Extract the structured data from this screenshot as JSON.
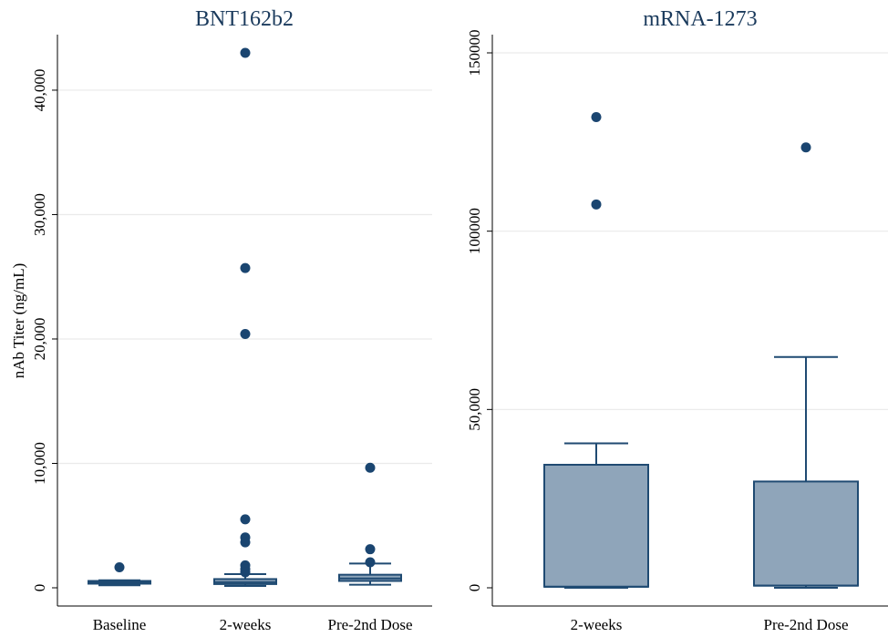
{
  "chart_data": [
    {
      "type": "box",
      "title": "BNT162b2",
      "ylabel": "nAb Titer (ng/mL)",
      "ylim": [
        0,
        44000
      ],
      "yticks": [
        0,
        10000,
        20000,
        30000,
        40000
      ],
      "ytick_labels": [
        "0",
        "10,000",
        "20,000",
        "30,000",
        "40,000"
      ],
      "grid": true,
      "categories": [
        "Baseline",
        "2-weeks",
        "Pre-2nd Dose"
      ],
      "boxes": [
        {
          "whisker_low": 200,
          "q1": 330,
          "median": 430,
          "q3": 550,
          "whisker_high": 600,
          "outliers": [
            1650
          ]
        },
        {
          "whisker_low": 150,
          "q1": 300,
          "median": 450,
          "q3": 700,
          "whisker_high": 1100,
          "outliers": [
            43000,
            25700,
            20400,
            5500,
            4050,
            3650,
            1800,
            1500,
            1250
          ]
        },
        {
          "whisker_low": 250,
          "q1": 550,
          "median": 750,
          "q3": 1050,
          "whisker_high": 1950,
          "outliers": [
            9650,
            3100,
            2050
          ]
        }
      ]
    },
    {
      "type": "box",
      "title": "mRNA-1273",
      "ylabel": "",
      "ylim": [
        0,
        152000
      ],
      "yticks": [
        0,
        50000,
        100000,
        150000
      ],
      "ytick_labels": [
        "0",
        "50,000",
        "100000",
        "150000"
      ],
      "grid": true,
      "categories": [
        "2-weeks",
        "Pre-2nd Dose"
      ],
      "boxes": [
        {
          "whisker_low": 0,
          "q1": 300,
          "median": 300,
          "q3": 34500,
          "whisker_high": 40500,
          "outliers": [
            132000,
            107500
          ]
        },
        {
          "whisker_low": 0,
          "q1": 600,
          "median": 600,
          "q3": 29800,
          "whisker_high": 64700,
          "outliers": [
            123500
          ]
        }
      ]
    }
  ]
}
